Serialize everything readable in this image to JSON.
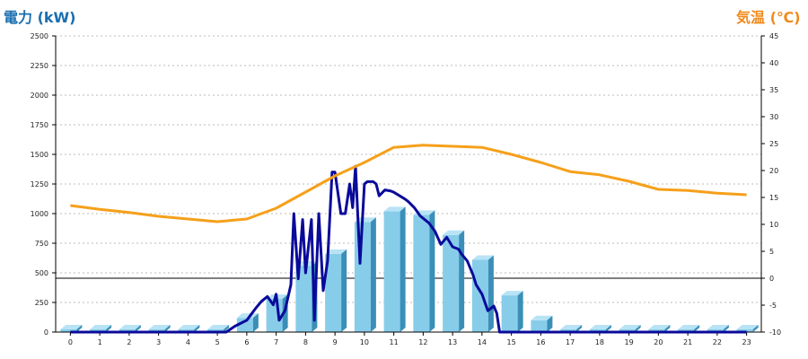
{
  "chart_data": {
    "type": "bar",
    "left_axis": {
      "title": "電力 (kW)",
      "range": [
        0,
        2500
      ],
      "ticks": [
        0,
        250,
        500,
        750,
        1000,
        1250,
        1500,
        1750,
        2000,
        2250,
        2500
      ],
      "color": "#1a6fb0"
    },
    "right_axis": {
      "title": "気温 (℃)",
      "range": [
        -10,
        45
      ],
      "ticks": [
        -10,
        -5,
        0,
        5,
        10,
        15,
        20,
        25,
        30,
        35,
        40,
        45
      ],
      "color": "#f08a1c"
    },
    "categories": [
      "0",
      "1",
      "2",
      "3",
      "4",
      "5",
      "6",
      "7",
      "8",
      "9",
      "10",
      "11",
      "12",
      "13",
      "14",
      "15",
      "16",
      "17",
      "18",
      "19",
      "20",
      "21",
      "22",
      "23"
    ],
    "grid": true,
    "series": [
      {
        "type": "bar",
        "axis": "left",
        "color": "#87cdea",
        "values": [
          0,
          0,
          0,
          0,
          0,
          0,
          120,
          280,
          560,
          660,
          930,
          1020,
          990,
          820,
          610,
          310,
          100,
          0,
          0,
          0,
          0,
          0,
          0,
          0
        ]
      },
      {
        "type": "line",
        "axis": "left",
        "color": "#0a0a9a",
        "x": [
          0,
          1,
          2,
          3,
          4,
          5.3,
          5.6,
          6,
          6.3,
          6.5,
          6.7,
          6.9,
          7.0,
          7.1,
          7.3,
          7.5,
          7.6,
          7.75,
          7.9,
          8.0,
          8.2,
          8.3,
          8.45,
          8.6,
          8.75,
          8.9,
          9.0,
          9.2,
          9.35,
          9.5,
          9.6,
          9.7,
          9.85,
          10.0,
          10.1,
          10.3,
          10.4,
          10.5,
          10.7,
          10.9,
          11.0,
          11.2,
          11.4,
          11.5,
          11.7,
          11.9,
          12.0,
          12.2,
          12.4,
          12.6,
          12.8,
          13.0,
          13.2,
          13.3,
          13.5,
          13.7,
          13.8,
          14.0,
          14.2,
          14.4,
          14.5,
          14.6,
          14.75,
          14.9,
          15.0,
          15.15,
          15.3,
          15.5,
          15.7,
          15.9,
          16.1,
          16.2,
          16.4,
          16.6,
          17,
          18,
          19,
          20,
          21,
          22,
          23
        ],
        "y": [
          0,
          0,
          0,
          0,
          0,
          0,
          50,
          100,
          200,
          260,
          300,
          230,
          320,
          100,
          180,
          400,
          1000,
          450,
          950,
          500,
          950,
          100,
          1000,
          350,
          600,
          1350,
          1350,
          1000,
          1000,
          1250,
          1050,
          1400,
          580,
          1250,
          1270,
          1270,
          1250,
          1150,
          1200,
          1190,
          1180,
          1150,
          1120,
          1100,
          1050,
          980,
          960,
          920,
          850,
          740,
          800,
          720,
          700,
          660,
          600,
          480,
          400,
          320,
          180,
          220,
          160,
          0,
          0,
          0,
          0,
          0,
          0,
          0,
          0,
          0,
          0,
          0,
          0,
          0,
          0,
          0,
          0,
          0,
          0,
          0,
          0
        ]
      },
      {
        "type": "line",
        "axis": "right",
        "color": "#f5a01a",
        "x": [
          0,
          1,
          2,
          3,
          4,
          5,
          6,
          7,
          8,
          9,
          10,
          11,
          12,
          13,
          14,
          15,
          16,
          17,
          18,
          19,
          20,
          21,
          22,
          23
        ],
        "y": [
          13.5,
          12.8,
          12.2,
          11.5,
          11.0,
          10.5,
          11.0,
          13.0,
          16.0,
          19.0,
          21.5,
          24.3,
          24.7,
          24.5,
          24.3,
          23.0,
          21.5,
          19.8,
          19.2,
          18.0,
          16.5,
          16.3,
          15.8,
          15.5
        ]
      }
    ],
    "reference_line": {
      "axis": "right",
      "value": 0
    }
  }
}
